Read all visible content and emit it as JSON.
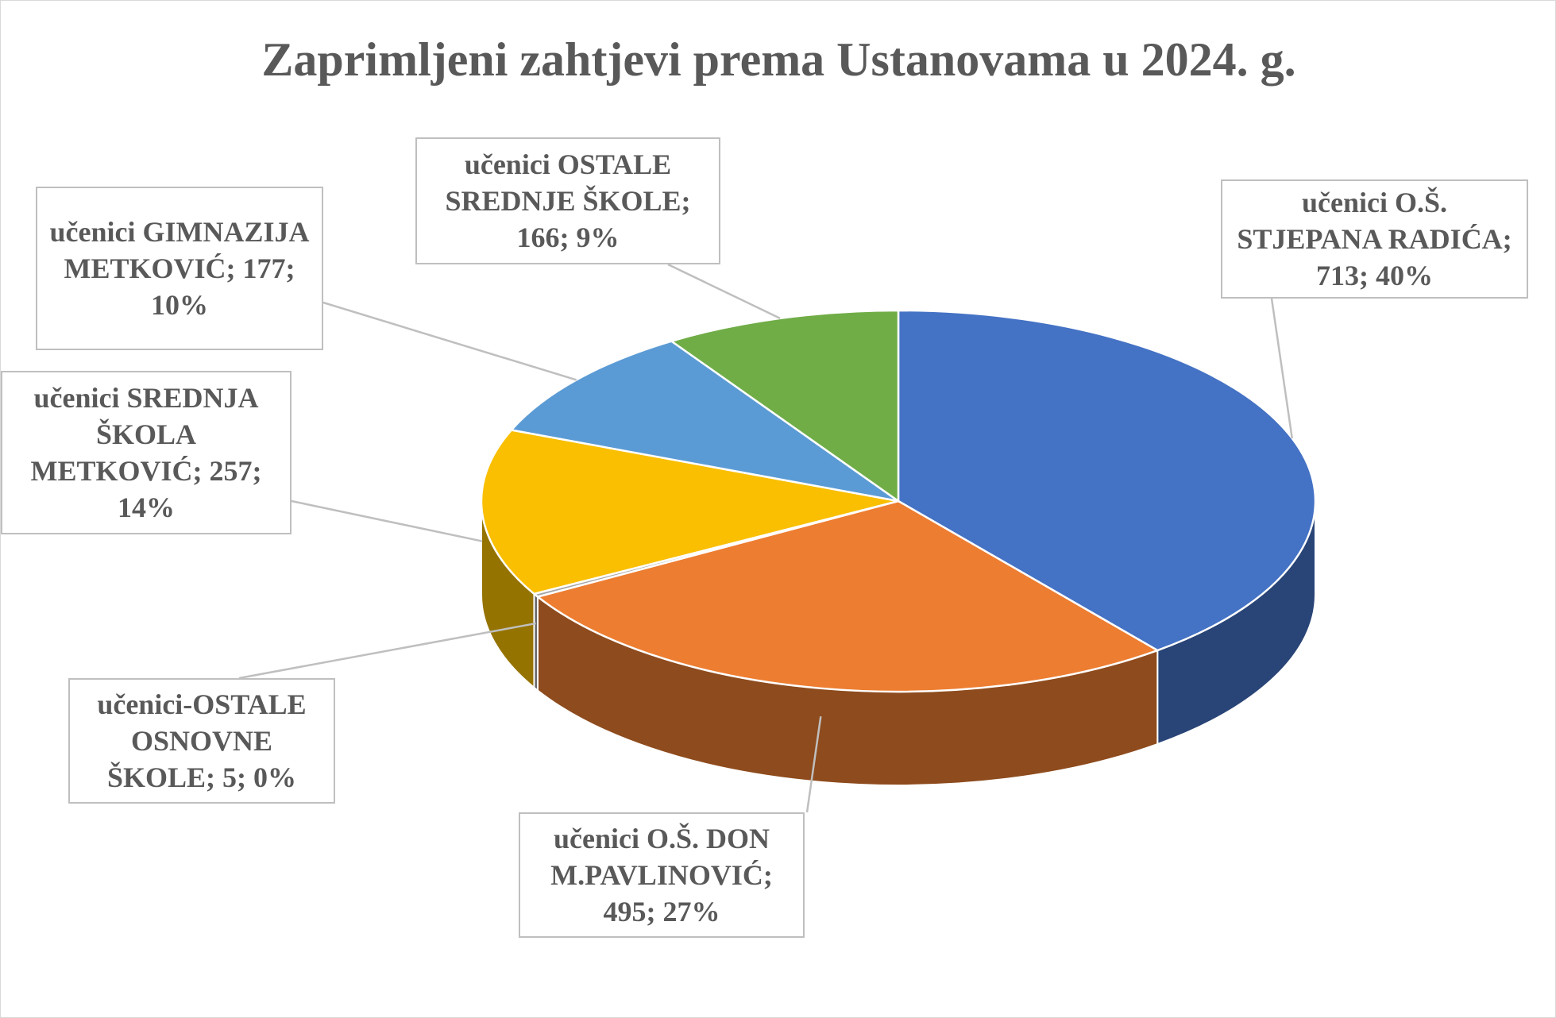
{
  "chart_data": {
    "type": "pie3d",
    "title": "Zaprimljeni zahtjevi prema Ustanovama u 2024. g.",
    "labels": [
      "učenici O.Š. STJEPANA RADIĆA; 713; 40%",
      "učenici O.Š. DON M.PAVLINOVIĆ; 495; 27%",
      "učenici-OSTALE OSNOVNE ŠKOLE; 5; 0%",
      "učenici SREDNJA ŠKOLA METKOVIĆ; 257; 14%",
      "učenici GIMNAZIJA METKOVIĆ; 177; 10%",
      "učenici OSTALE SREDNJE ŠKOLE; 166; 9%"
    ],
    "values": [
      713,
      495,
      5,
      257,
      177,
      166
    ],
    "colors": [
      "#4472c4",
      "#ed7d31",
      "#a5a5a5",
      "#f9bf00",
      "#5b9bd5",
      "#70ad47"
    ]
  }
}
